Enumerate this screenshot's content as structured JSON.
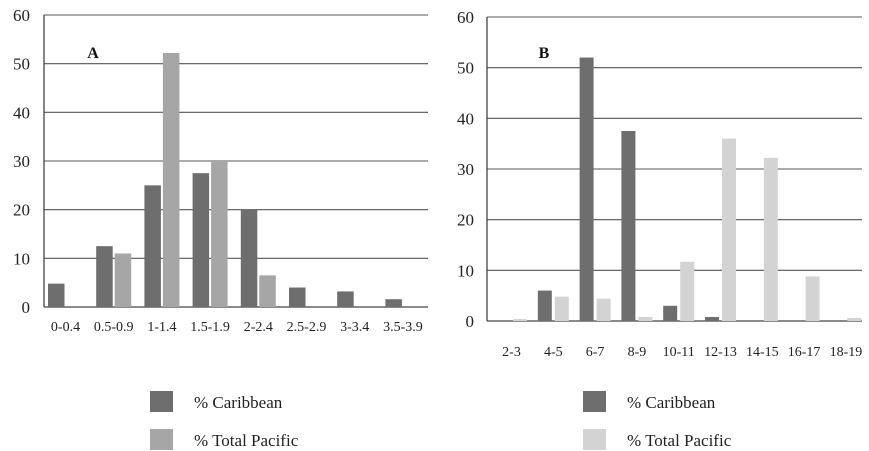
{
  "chart_data": [
    {
      "type": "bar",
      "panel_label": "A",
      "categories": [
        "0-0.4",
        "0.5-0.9",
        "1-1.4",
        "1.5-1.9",
        "2-2.4",
        "2.5-2.9",
        "3-3.4",
        "3.5-3.9"
      ],
      "ylim": [
        0,
        60
      ],
      "yticks": [
        0,
        10,
        20,
        30,
        40,
        50,
        60
      ],
      "grid": true,
      "series": [
        {
          "name": "% Caribbean",
          "color": "#6e6e6e",
          "values": [
            4.8,
            12.5,
            25,
            27.5,
            20,
            4,
            3.2,
            1.6
          ]
        },
        {
          "name": "% Total Pacific",
          "color": "#a6a6a6",
          "values": [
            0,
            11,
            52.2,
            30,
            6.5,
            0,
            0,
            0
          ]
        }
      ]
    },
    {
      "type": "bar",
      "panel_label": "B",
      "categories": [
        "2-3",
        "4-5",
        "6-7",
        "8-9",
        "10-11",
        "12-13",
        "14-15",
        "16-17",
        "18-19"
      ],
      "ylim": [
        0,
        60
      ],
      "yticks": [
        0,
        10,
        20,
        30,
        40,
        50,
        60
      ],
      "grid": true,
      "series": [
        {
          "name": "% Caribbean",
          "color": "#6e6e6e",
          "values": [
            0,
            6,
            52,
            37.5,
            3,
            0.8,
            0,
            0,
            0
          ]
        },
        {
          "name": "% Total Pacific",
          "color": "#d3d3d3",
          "values": [
            0.4,
            4.8,
            4.4,
            0.8,
            11.7,
            36,
            32.2,
            8.8,
            0.6
          ]
        }
      ]
    }
  ]
}
